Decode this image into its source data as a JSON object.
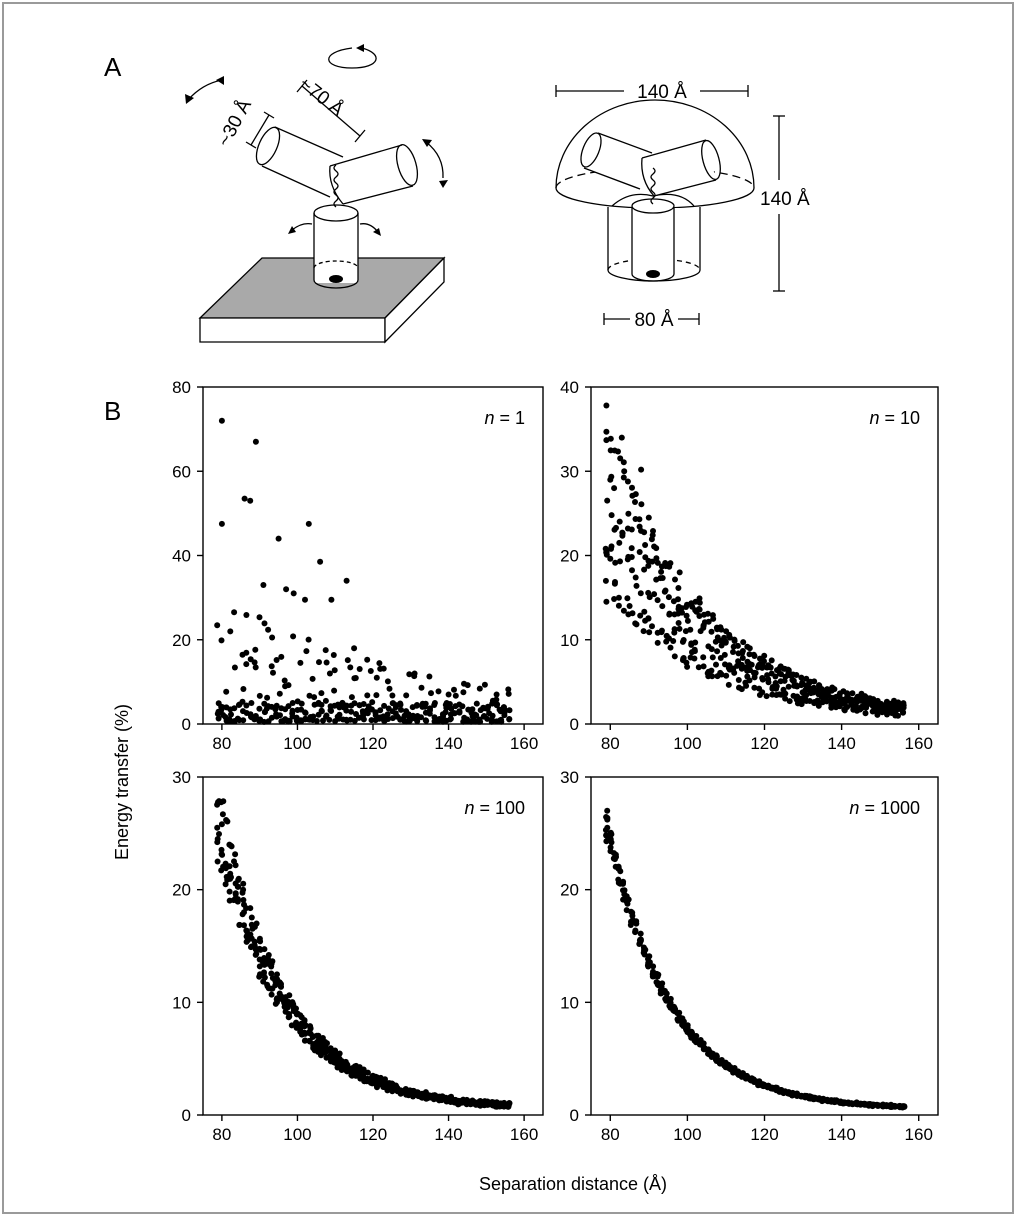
{
  "figure": {
    "panel_a_label": "A",
    "panel_b_label": "B",
    "ylabel": "Energy transfer (%)",
    "xlabel": "Separation distance (Å)"
  },
  "diagram_left": {
    "dim_length": "~70 Å",
    "dim_diameter": "~30 Å"
  },
  "diagram_right": {
    "dim_width": "140 Å",
    "dim_height": "140 Å",
    "dim_base": "80 Å"
  },
  "chart_data": [
    {
      "type": "scatter",
      "n_label_var": "n",
      "n_label_rest": " = 1",
      "xlim": [
        75,
        165
      ],
      "xticks": [
        80,
        100,
        120,
        140,
        160
      ],
      "ylim": [
        0,
        80
      ],
      "yticks": [
        0,
        20,
        40,
        60,
        80
      ],
      "decay": 20,
      "spread": 1.0,
      "jitter": 0.9,
      "perx": 5,
      "seed": 11,
      "grid": false,
      "xlabel": "",
      "ylabel": "",
      "points": [
        [
          80,
          72
        ],
        [
          89,
          67
        ],
        [
          86,
          53.5
        ],
        [
          87.5,
          53
        ],
        [
          80,
          47.5
        ],
        [
          103,
          47.5
        ],
        [
          95,
          44
        ],
        [
          106,
          38.5
        ],
        [
          113,
          34
        ],
        [
          91,
          33
        ],
        [
          97,
          32
        ],
        [
          99,
          31
        ],
        [
          109,
          29.5
        ],
        [
          102,
          29.5
        ],
        [
          115,
          18
        ],
        [
          121,
          11
        ],
        [
          131,
          12
        ],
        [
          140,
          7
        ]
      ]
    },
    {
      "type": "scatter",
      "n_label_var": "n",
      "n_label_rest": " = 10",
      "xlim": [
        75,
        165
      ],
      "xticks": [
        80,
        100,
        120,
        140,
        160
      ],
      "ylim": [
        0,
        40
      ],
      "yticks": [
        0,
        10,
        20,
        30,
        40
      ],
      "decay": 9.2,
      "spread": 0.42,
      "jitter": 0.45,
      "perx": 7,
      "seed": 23,
      "grid": false,
      "xlabel": "",
      "ylabel": "",
      "points": [
        [
          79,
          37.8
        ],
        [
          83,
          34
        ],
        [
          79,
          33.7
        ],
        [
          88,
          30.2
        ],
        [
          80,
          29
        ],
        [
          81,
          28
        ],
        [
          90,
          24.5
        ],
        [
          79,
          14.5
        ],
        [
          85,
          14
        ],
        [
          98,
          18
        ]
      ]
    },
    {
      "type": "scatter",
      "n_label_var": "n",
      "n_label_rest": " = 100",
      "xlim": [
        75,
        165
      ],
      "xticks": [
        80,
        100,
        120,
        140,
        160
      ],
      "ylim": [
        0,
        30
      ],
      "yticks": [
        0,
        10,
        20,
        30
      ],
      "decay": 6.4,
      "spread": 0.14,
      "jitter": 0.3,
      "perx": 8,
      "seed": 37,
      "grid": false,
      "xlabel": "",
      "ylabel": "",
      "points": [
        [
          80,
          25.8
        ],
        [
          82,
          24
        ]
      ]
    },
    {
      "type": "scatter",
      "n_label_var": "n",
      "n_label_rest": " = 1000",
      "xlim": [
        75,
        165
      ],
      "xticks": [
        80,
        100,
        120,
        140,
        160
      ],
      "ylim": [
        0,
        30
      ],
      "yticks": [
        0,
        10,
        20,
        30
      ],
      "decay": 5.9,
      "spread": 0.045,
      "jitter": 0.15,
      "perx": 7,
      "seed": 41,
      "grid": false,
      "xlabel": "",
      "ylabel": "",
      "points": [
        [
          79,
          24.8
        ],
        [
          79,
          24.3
        ]
      ]
    }
  ]
}
